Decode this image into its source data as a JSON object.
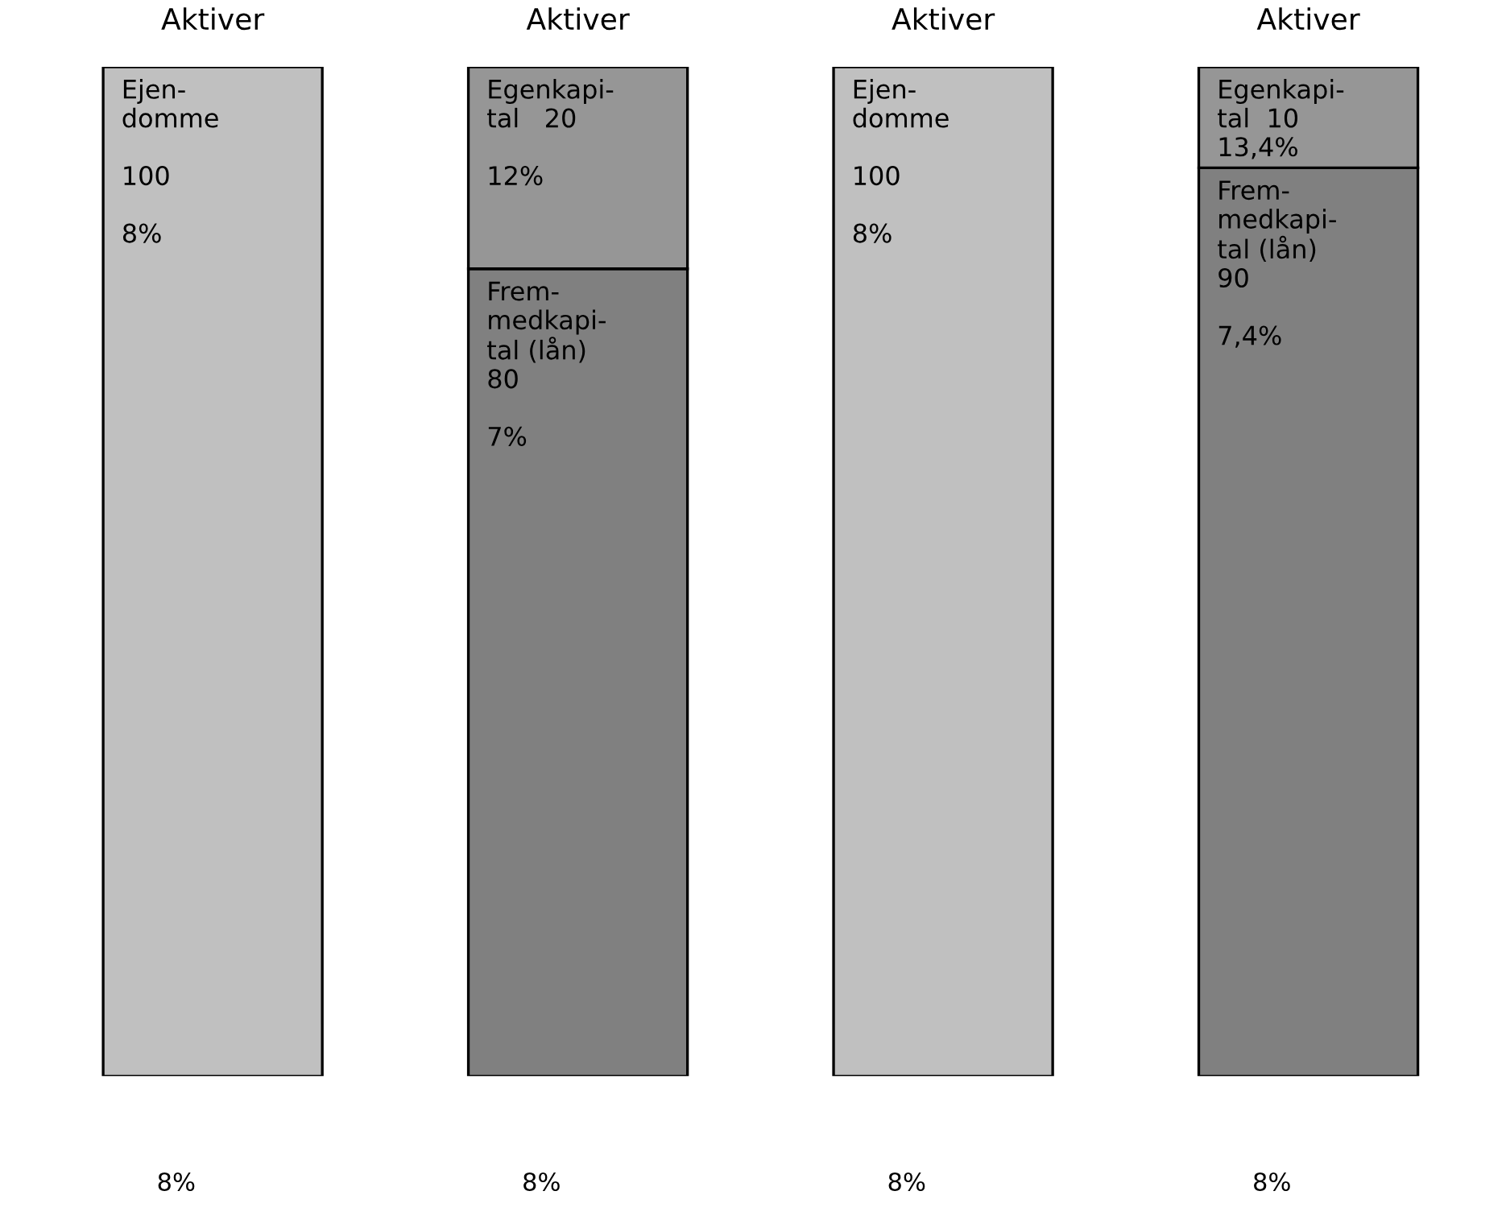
{
  "chart_data": {
    "type": "bar",
    "stacked": true,
    "categories": [
      "Aktiver",
      "Aktiver",
      "Aktiver",
      "Aktiver"
    ],
    "series": [
      {
        "colors": [
          "#c0c0c0",
          "#808080",
          "#c0c0c0",
          "#808080"
        ],
        "values": [
          100,
          80,
          100,
          90
        ],
        "value_labels": [
          "Ejen-\ndomme\n\n100\n\n8%",
          "Frem-\nmedkapi-\ntal (lån)\n80\n\n7%",
          "Ejen-\ndomme\n\n100\n\n8%",
          "Frem-\nmedkapi-\ntal (lån)\n90\n\n7,4%"
        ]
      },
      {
        "color": "#969696",
        "values": [
          null,
          20,
          null,
          10
        ],
        "value_labels": [
          null,
          "Egenkapi-\ntal   20\n\n12%",
          null,
          "Egenkapi-\ntal  10\n13,4%"
        ]
      }
    ],
    "annotations": [
      "8%",
      "8%",
      "8%",
      "8%"
    ]
  }
}
